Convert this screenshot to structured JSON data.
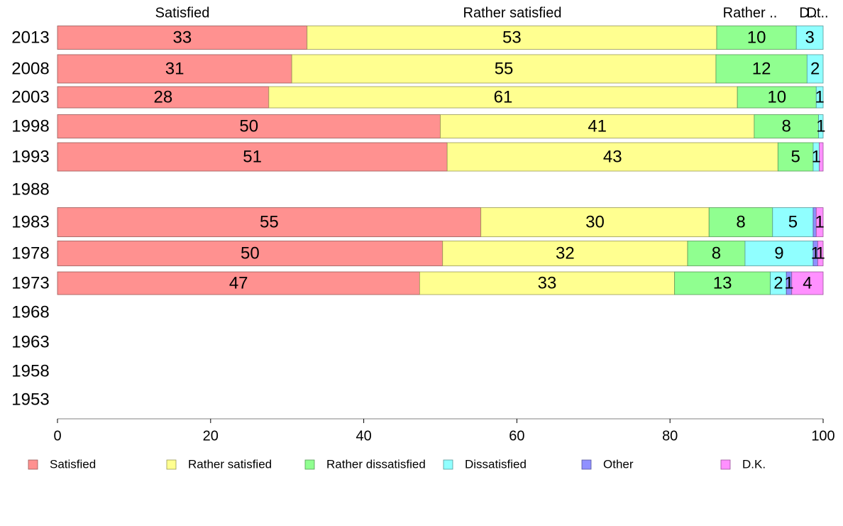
{
  "chart_data": {
    "type": "bar",
    "orientation": "horizontal",
    "stacked": true,
    "title": "",
    "xlabel": "",
    "ylabel": "",
    "xlim": [
      0,
      100
    ],
    "x_ticks": [
      0,
      20,
      40,
      60,
      80,
      100
    ],
    "grid": false,
    "legend_position": "bottom",
    "categories": [
      "2013",
      "2008",
      "2003",
      "1998",
      "1993",
      "1988",
      "1983",
      "1978",
      "1973",
      "1968",
      "1963",
      "1958",
      "1953"
    ],
    "series": [
      {
        "name": "Satisfied",
        "color": "#ff9190",
        "values": [
          32.6,
          30.6,
          27.6,
          50.0,
          50.9,
          null,
          55.3,
          50.3,
          47.3,
          null,
          null,
          null,
          null
        ],
        "labels": [
          "33",
          "31",
          "28",
          "50",
          "51",
          "",
          "55",
          "50",
          "47",
          "",
          "",
          "",
          ""
        ]
      },
      {
        "name": "Rather satisfied",
        "color": "#ffff90",
        "values": [
          53.5,
          55.4,
          61.2,
          41.0,
          43.2,
          null,
          29.8,
          32.0,
          33.3,
          null,
          null,
          null,
          null
        ],
        "labels": [
          "53",
          "55",
          "61",
          "41",
          "43",
          "",
          "30",
          "32",
          "33",
          "",
          "",
          "",
          ""
        ]
      },
      {
        "name": "Rather dissatisfied",
        "color": "#90ff90",
        "values": [
          10.4,
          11.9,
          10.3,
          8.4,
          4.6,
          null,
          8.3,
          7.5,
          12.5,
          null,
          null,
          null,
          null
        ],
        "labels": [
          "10",
          "12",
          "10",
          "8",
          "5",
          "",
          "8",
          "8",
          "13",
          "",
          "",
          "",
          ""
        ]
      },
      {
        "name": "Dissatisfied",
        "color": "#90ffff",
        "values": [
          3.5,
          2.1,
          0.9,
          0.6,
          0.8,
          null,
          5.3,
          8.9,
          2.1,
          null,
          null,
          null,
          null
        ],
        "labels": [
          "3",
          "2",
          "1",
          "1",
          "1",
          "",
          "5",
          "9",
          "2",
          "",
          "",
          "",
          ""
        ]
      },
      {
        "name": "Other",
        "color": "#9090ff",
        "values": [
          0,
          0,
          0,
          0,
          0,
          null,
          0.4,
          0.6,
          0.7,
          null,
          null,
          null,
          null
        ],
        "labels": [
          "",
          "",
          "",
          "",
          "",
          "",
          "",
          "1",
          "1",
          "",
          "",
          "",
          ""
        ]
      },
      {
        "name": "D.K.",
        "color": "#ff90ff",
        "values": [
          0,
          0,
          0,
          0,
          0.5,
          null,
          0.9,
          0.7,
          4.1,
          null,
          null,
          null,
          null
        ],
        "labels": [
          "",
          "",
          "",
          "",
          "",
          "",
          "1",
          "1",
          "4",
          "",
          "",
          "",
          ""
        ]
      }
    ],
    "top_labels": [
      "Satisfied",
      "Rather satisfied",
      "Rather ..",
      "D..",
      "Dt.."
    ]
  }
}
